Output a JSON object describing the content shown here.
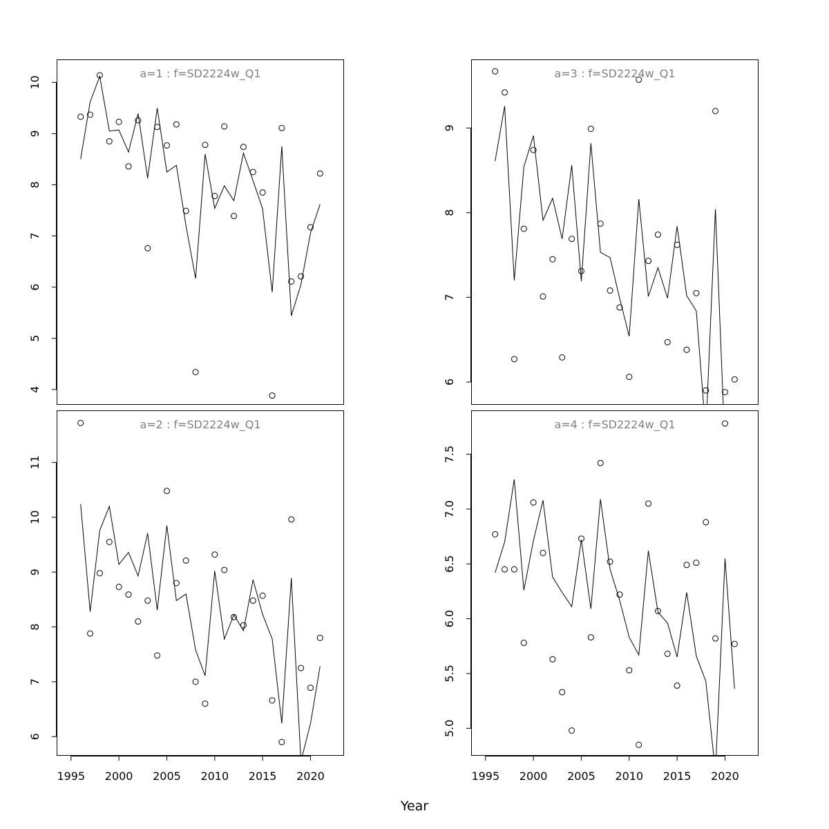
{
  "figure": {
    "xlabel": "Year"
  },
  "chart_data": [
    {
      "type": "scatter",
      "title": "a=1  :  f=SD2224w_Q1",
      "xlabel": "Year",
      "ylabel": "",
      "xlim": [
        1993.5,
        2023.5
      ],
      "ylim": [
        3.7,
        10.45
      ],
      "x_ticks": [],
      "y_ticks": [
        4,
        5,
        6,
        7,
        8,
        9,
        10
      ],
      "grid": false,
      "series": [
        {
          "kind": "points",
          "x": [
            1996,
            1997,
            1998,
            1999,
            2000,
            2001,
            2002,
            2003,
            2004,
            2005,
            2006,
            2007,
            2008,
            2009,
            2010,
            2011,
            2012,
            2013,
            2014,
            2015,
            2016,
            2017,
            2018,
            2019,
            2020,
            2021
          ],
          "y": [
            9.33,
            9.37,
            10.14,
            8.85,
            9.23,
            8.36,
            9.26,
            6.76,
            9.13,
            8.77,
            9.18,
            7.49,
            4.34,
            8.78,
            7.78,
            9.14,
            7.39,
            8.74,
            8.25,
            7.85,
            3.88,
            9.11,
            6.11,
            6.21,
            7.17,
            8.22
          ]
        },
        {
          "kind": "line",
          "x": [
            1996,
            1997,
            1998,
            1999,
            2000,
            2001,
            2002,
            2003,
            2004,
            2005,
            2006,
            2007,
            2008,
            2009,
            2010,
            2011,
            2012,
            2013,
            2014,
            2015,
            2016,
            2017,
            2018,
            2019,
            2020,
            2021
          ],
          "y": [
            8.5,
            9.62,
            10.12,
            9.05,
            9.07,
            8.64,
            9.39,
            8.13,
            9.5,
            8.25,
            8.38,
            7.2,
            6.17,
            8.6,
            7.54,
            7.98,
            7.69,
            8.62,
            8.08,
            7.53,
            5.9,
            8.75,
            5.44,
            6.05,
            7.06,
            7.62
          ]
        }
      ]
    },
    {
      "type": "scatter",
      "title": "a=3  :  f=SD2224w_Q1",
      "xlabel": "Year",
      "ylabel": "",
      "xlim": [
        1993.5,
        2023.5
      ],
      "ylim": [
        5.73,
        9.81
      ],
      "x_ticks": [],
      "y_ticks": [
        6,
        7,
        8,
        9
      ],
      "grid": false,
      "series": [
        {
          "kind": "points",
          "x": [
            1996,
            1997,
            1998,
            1999,
            2000,
            2001,
            2002,
            2003,
            2004,
            2005,
            2006,
            2007,
            2008,
            2009,
            2010,
            2011,
            2012,
            2013,
            2014,
            2015,
            2016,
            2017,
            2018,
            2019,
            2020,
            2021
          ],
          "y": [
            9.67,
            9.42,
            6.27,
            7.81,
            8.74,
            7.01,
            7.45,
            6.29,
            7.69,
            7.31,
            8.99,
            7.87,
            7.08,
            6.88,
            6.06,
            9.57,
            7.43,
            7.74,
            6.47,
            7.62,
            6.38,
            7.05,
            5.9,
            9.2,
            5.88,
            6.03
          ]
        },
        {
          "kind": "line",
          "x": [
            1996,
            1997,
            1998,
            1999,
            2000,
            2001,
            2002,
            2003,
            2004,
            2005,
            2006,
            2007,
            2008,
            2009,
            2010,
            2011,
            2012,
            2013,
            2014,
            2015,
            2016,
            2017,
            2018,
            2019,
            2020,
            2021
          ],
          "y": [
            8.61,
            9.26,
            7.2,
            8.54,
            8.91,
            7.91,
            8.17,
            7.69,
            8.56,
            7.19,
            8.82,
            7.53,
            7.47,
            6.99,
            6.54,
            8.16,
            7.01,
            7.35,
            6.99,
            7.84,
            7.02,
            6.84,
            5.4,
            8.04,
            5.2,
            5.5
          ]
        }
      ]
    },
    {
      "type": "scatter",
      "title": "a=2  :  f=SD2224w_Q1",
      "xlabel": "Year",
      "ylabel": "",
      "xlim": [
        1993.5,
        2023.5
      ],
      "ylim": [
        5.65,
        11.95
      ],
      "x_ticks": [
        1995,
        2000,
        2005,
        2010,
        2015,
        2020
      ],
      "y_ticks": [
        6,
        7,
        8,
        9,
        10,
        11
      ],
      "grid": false,
      "series": [
        {
          "kind": "points",
          "x": [
            1996,
            1997,
            1998,
            1999,
            2000,
            2001,
            2002,
            2003,
            2004,
            2005,
            2006,
            2007,
            2008,
            2009,
            2010,
            2011,
            2012,
            2013,
            2014,
            2015,
            2016,
            2017,
            2018,
            2019,
            2020,
            2021
          ],
          "y": [
            11.72,
            7.88,
            8.98,
            9.55,
            8.73,
            8.59,
            8.1,
            8.48,
            7.48,
            10.48,
            8.8,
            9.21,
            7.0,
            6.6,
            9.32,
            9.04,
            8.18,
            8.03,
            8.48,
            8.57,
            6.66,
            5.9,
            9.96,
            7.25,
            6.89,
            7.8
          ]
        },
        {
          "kind": "line",
          "x": [
            1996,
            1997,
            1998,
            1999,
            2000,
            2001,
            2002,
            2003,
            2004,
            2005,
            2006,
            2007,
            2008,
            2009,
            2010,
            2011,
            2012,
            2013,
            2014,
            2015,
            2016,
            2017,
            2018,
            2019,
            2020,
            2021
          ],
          "y": [
            10.24,
            8.28,
            9.76,
            10.2,
            9.14,
            9.36,
            8.93,
            9.71,
            8.31,
            9.85,
            8.48,
            8.6,
            7.58,
            7.11,
            9.02,
            7.78,
            8.22,
            7.93,
            8.86,
            8.23,
            7.78,
            6.24,
            8.89,
            5.55,
            6.24,
            7.28
          ]
        }
      ]
    },
    {
      "type": "scatter",
      "title": "a=4  :  f=SD2224w_Q1",
      "xlabel": "Year",
      "ylabel": "",
      "xlim": [
        1993.5,
        2023.5
      ],
      "ylim": [
        4.75,
        7.9
      ],
      "x_ticks": [
        1995,
        2000,
        2005,
        2010,
        2015,
        2020
      ],
      "y_ticks": [
        5.0,
        5.5,
        6.0,
        6.5,
        7.0,
        7.5
      ],
      "grid": false,
      "series": [
        {
          "kind": "points",
          "x": [
            1996,
            1997,
            1998,
            1999,
            2000,
            2001,
            2002,
            2003,
            2004,
            2005,
            2006,
            2007,
            2008,
            2009,
            2010,
            2011,
            2012,
            2013,
            2014,
            2015,
            2016,
            2017,
            2018,
            2019,
            2020,
            2021
          ],
          "y": [
            6.77,
            6.45,
            6.45,
            5.78,
            7.06,
            6.6,
            5.63,
            5.33,
            4.98,
            6.73,
            5.83,
            7.42,
            6.52,
            6.22,
            5.53,
            4.85,
            7.05,
            6.07,
            5.68,
            5.39,
            6.49,
            6.51,
            6.88,
            5.82,
            7.78,
            5.77
          ]
        },
        {
          "kind": "line",
          "x": [
            1996,
            1997,
            1998,
            1999,
            2000,
            2001,
            2002,
            2003,
            2004,
            2005,
            2006,
            2007,
            2008,
            2009,
            2010,
            2011,
            2012,
            2013,
            2014,
            2015,
            2016,
            2017,
            2018,
            2019,
            2020,
            2021
          ],
          "y": [
            6.42,
            6.7,
            7.27,
            6.26,
            6.71,
            7.08,
            6.38,
            6.24,
            6.11,
            6.72,
            6.09,
            7.09,
            6.45,
            6.17,
            5.83,
            5.67,
            6.62,
            6.06,
            5.96,
            5.65,
            6.24,
            5.66,
            5.43,
            4.6,
            6.55,
            5.36
          ]
        }
      ]
    }
  ]
}
